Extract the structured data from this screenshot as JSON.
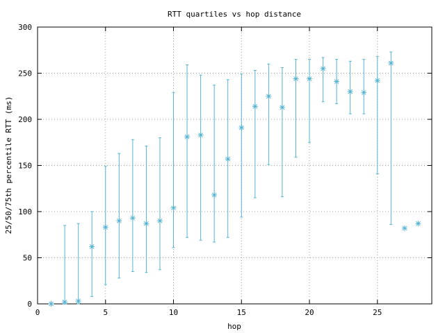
{
  "chart_data": {
    "type": "scatter",
    "title": "RTT quartiles vs hop distance",
    "xlabel": "hop",
    "ylabel": "25/50/75th percentile RTT (ms)",
    "xlim": [
      0,
      29
    ],
    "ylim": [
      0,
      300
    ],
    "xticks": [
      "0",
      "5",
      "10",
      "15",
      "20",
      "25"
    ],
    "yticks": [
      "0",
      "50",
      "100",
      "150",
      "200",
      "250",
      "300"
    ],
    "grid": true,
    "legend": "none",
    "color": "#56b4d3",
    "series": [
      {
        "x": [
          1,
          2,
          3,
          4,
          5,
          6,
          7,
          8,
          9,
          10,
          11,
          12,
          13,
          14,
          15,
          16,
          17,
          18,
          19,
          20,
          21,
          22,
          23,
          24,
          25,
          26,
          27,
          28
        ],
        "median": [
          0,
          2,
          3,
          62,
          83,
          90,
          93,
          87,
          90,
          104,
          181,
          183,
          118,
          157,
          191,
          214,
          225,
          213,
          244,
          244,
          255,
          241,
          230,
          229,
          242,
          261,
          82,
          87
        ],
        "q1": [
          0,
          0,
          0,
          8,
          21,
          28,
          35,
          34,
          37,
          61,
          72,
          69,
          67,
          72,
          94,
          115,
          151,
          116,
          159,
          175,
          219,
          217,
          206,
          206,
          141,
          86,
          82,
          87
        ],
        "q3": [
          0,
          85,
          87,
          100,
          149,
          163,
          178,
          171,
          180,
          229,
          259,
          248,
          237,
          243,
          249,
          253,
          260,
          256,
          265,
          265,
          267,
          265,
          263,
          265,
          268,
          273,
          82,
          87
        ]
      }
    ]
  }
}
